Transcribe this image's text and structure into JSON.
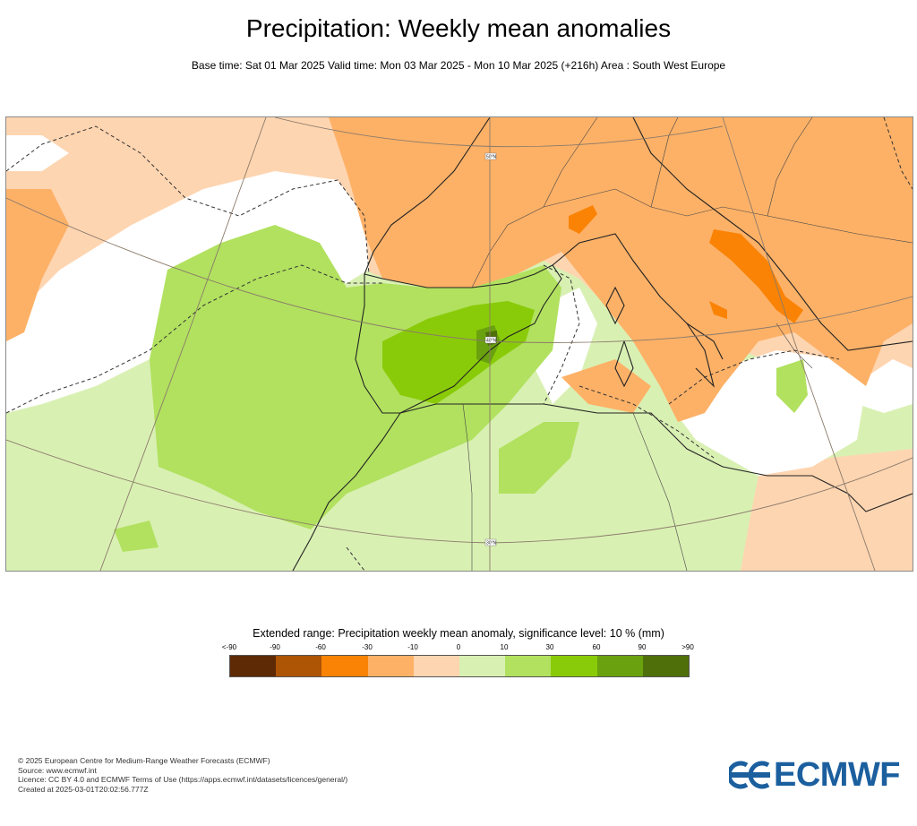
{
  "title": "Precipitation: Weekly mean anomalies",
  "subtitle": "Base time: Sat 01 Mar 2025 Valid time: Mon 03 Mar 2025 - Mon 10 Mar 2025 (+216h) Area : South West Europe",
  "map": {
    "area": "South West Europe",
    "grid_labels": [
      "40°N",
      "30°N",
      "50°N"
    ]
  },
  "legend": {
    "title": "Extended range: Precipitation weekly mean anomaly, significance level: 10 % (mm)",
    "ticks": [
      "<-90",
      "-90",
      "-60",
      "-30",
      "-10",
      "0",
      "10",
      "30",
      "60",
      "90",
      ">90"
    ],
    "colors": [
      "#5e2a06",
      "#ad5405",
      "#fa8305",
      "#fdb167",
      "#fed5b1",
      "#ffffff",
      "#d9f0b3",
      "#b1e15f",
      "#8acb09",
      "#6aa10e",
      "#4f6f0b"
    ]
  },
  "footer": {
    "line1": "© 2025 European Centre for Medium-Range Weather Forecasts (ECMWF)",
    "line2": "Source: www.ecmwf.int",
    "line3": "Licence: CC BY 4.0 and ECMWF Terms of Use (https://apps.ecmwf.int/datasets/licences/general/)",
    "line4": "Created at 2025-03-01T20:02:56.777Z"
  },
  "logo": {
    "text": "ECMWF",
    "color": "#1b5f9e"
  }
}
